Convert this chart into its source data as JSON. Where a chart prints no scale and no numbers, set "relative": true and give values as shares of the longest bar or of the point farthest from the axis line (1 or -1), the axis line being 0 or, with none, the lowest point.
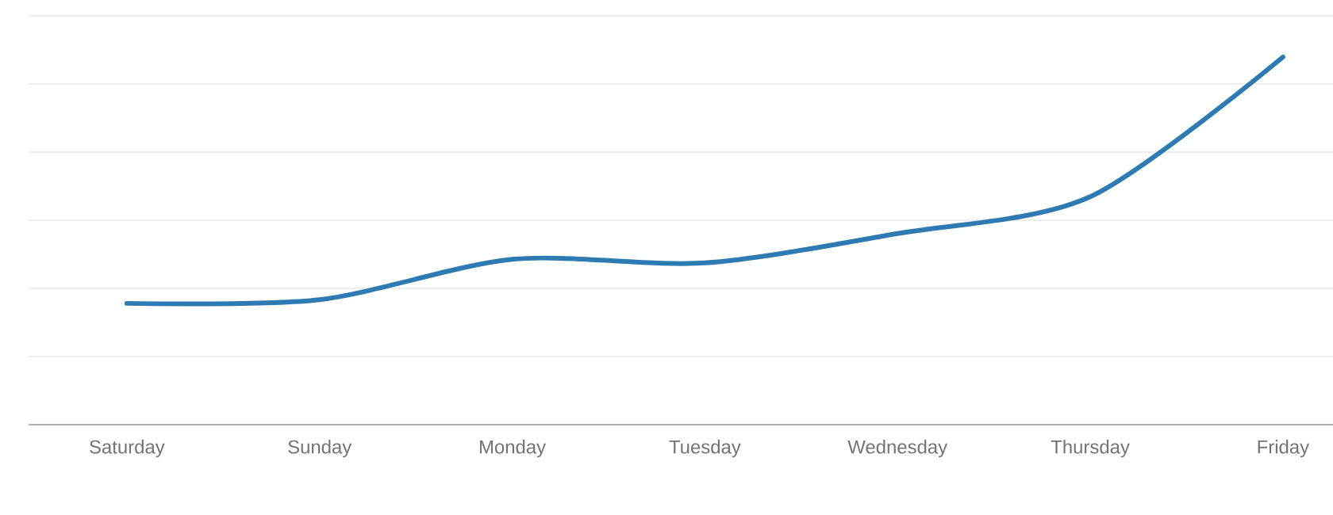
{
  "chart_data": {
    "type": "line",
    "relative": true,
    "grid": "y",
    "marker": "none",
    "line_style": "solid",
    "categories": [
      "Saturday",
      "Sunday",
      "Monday",
      "Tuesday",
      "Wednesday",
      "Thursday",
      "Friday"
    ],
    "series": [
      {
        "color": "#2e7bb4",
        "values": [
          0.33,
          0.34,
          0.45,
          0.44,
          0.52,
          0.62,
          1
        ]
      }
    ]
  }
}
